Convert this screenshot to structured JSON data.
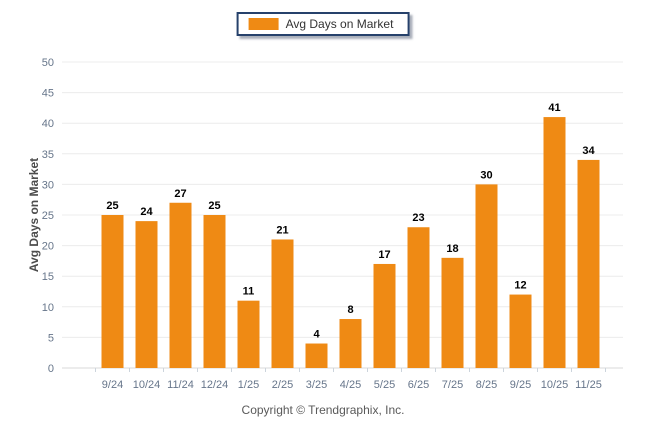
{
  "legend": {
    "label": "Avg Days on Market",
    "swatch_color": "#EF8A14"
  },
  "chart_data": {
    "type": "bar",
    "categories": [
      "9/24",
      "10/24",
      "11/24",
      "12/24",
      "1/25",
      "2/25",
      "3/25",
      "4/25",
      "5/25",
      "6/25",
      "7/25",
      "8/25",
      "9/25",
      "10/25",
      "11/25"
    ],
    "values": [
      25,
      24,
      27,
      25,
      11,
      21,
      4,
      8,
      17,
      23,
      18,
      30,
      12,
      41,
      34
    ],
    "title": "",
    "xlabel": "",
    "ylabel": "Avg Days on Market",
    "ylim": [
      0,
      50
    ],
    "ytick_step": 5,
    "grid": true,
    "legend_position": "top-center",
    "bar_color": "#EF8A14",
    "value_labels": true
  },
  "footer": {
    "copyright": "Copyright © Trendgraphix, Inc."
  }
}
